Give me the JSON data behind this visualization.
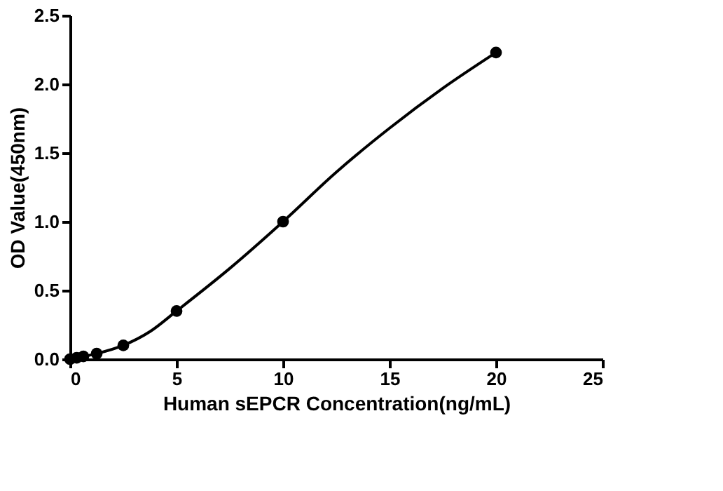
{
  "chart_data": {
    "type": "scatter",
    "xlabel": "Human sEPCR Concentration(ng/mL)",
    "ylabel": "OD Value(450nm)",
    "xlim": [
      0,
      25
    ],
    "xticks": [
      0,
      5,
      10,
      15,
      20,
      25
    ],
    "ylim": [
      0,
      2.5
    ],
    "yticks": [
      {
        "value": 0,
        "label": "0.0"
      },
      {
        "value": 0.5,
        "label": "0.5"
      },
      {
        "value": 1,
        "label": "1.0"
      },
      {
        "value": 1.5,
        "label": "1.5"
      },
      {
        "value": 2,
        "label": "2.0"
      },
      {
        "value": 2.5,
        "label": "2.5"
      }
    ],
    "grid": false,
    "marker": "circle",
    "x": [
      0,
      0.3125,
      0.625,
      1.25,
      2.5,
      5,
      10,
      20
    ],
    "series": [
      {
        "color": "#000000",
        "values": [
          0.0,
          0.01,
          0.02,
          0.04,
          0.1,
          0.35,
          1.0,
          2.23
        ]
      },
      {
        "type": "line",
        "color": "#000000",
        "line_style": "solid",
        "marker": "none",
        "x": [
          0,
          1.25,
          2.5,
          3.75,
          5,
          7.5,
          10,
          12.5,
          15,
          17.5,
          20
        ],
        "values": [
          0.0,
          0.04,
          0.1,
          0.2,
          0.35,
          0.66,
          1.0,
          1.36,
          1.68,
          1.97,
          2.23
        ]
      }
    ]
  }
}
